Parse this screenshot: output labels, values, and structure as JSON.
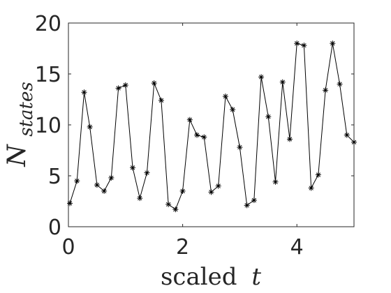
{
  "chart_data": {
    "type": "line",
    "title": "",
    "xlabel": {
      "text": "scaled",
      "var": "t"
    },
    "ylabel": {
      "base": "N",
      "sub": "states"
    },
    "xlim": [
      0,
      5
    ],
    "ylim": [
      0,
      20
    ],
    "xticks": [
      0,
      2,
      4
    ],
    "xtick_labels": [
      "0",
      "2",
      "4"
    ],
    "yticks": [
      0,
      5,
      10,
      15,
      20
    ],
    "ytick_labels": [
      "0",
      "5",
      "10",
      "15",
      "20"
    ],
    "grid": false,
    "legend": "none",
    "marker": "asterisk",
    "color": "#000000",
    "series": [
      {
        "x": [
          0.025,
          0.15,
          0.275,
          0.375,
          0.5,
          0.625,
          0.75,
          0.875,
          1.0,
          1.125,
          1.25,
          1.375,
          1.5,
          1.625,
          1.75,
          1.875,
          2.0,
          2.125,
          2.25,
          2.375,
          2.5,
          2.625,
          2.75,
          2.875,
          3.0,
          3.125,
          3.25,
          3.375,
          3.5,
          3.625,
          3.75,
          3.875,
          4.0,
          4.125,
          4.25,
          4.375,
          4.5,
          4.625,
          4.75,
          4.875,
          5.0
        ],
        "y": [
          2.3,
          4.5,
          13.2,
          9.8,
          4.1,
          3.5,
          4.8,
          13.6,
          13.9,
          5.8,
          2.8,
          5.3,
          14.1,
          12.4,
          2.2,
          1.7,
          3.5,
          10.5,
          9.0,
          8.8,
          3.4,
          4.0,
          12.8,
          11.5,
          7.8,
          2.1,
          2.6,
          14.7,
          10.8,
          4.4,
          14.2,
          8.6,
          18.0,
          17.8,
          3.8,
          5.1,
          13.4,
          18.0,
          14.0,
          9.0,
          8.3
        ]
      }
    ]
  }
}
